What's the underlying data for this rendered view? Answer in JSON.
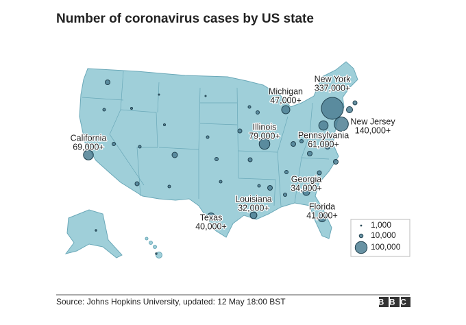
{
  "title": "Number of coronavirus cases by US state",
  "states": [
    {
      "name": "New York",
      "value": 337000,
      "label": "337,000+"
    },
    {
      "name": "New Jersey",
      "value": 140000,
      "label": "140,000+"
    },
    {
      "name": "Michigan",
      "value": 47000,
      "label": "47,000+"
    },
    {
      "name": "Illinois",
      "value": 79000,
      "label": "79,000+"
    },
    {
      "name": "Pennsylvania",
      "value": 61000,
      "label": "61,000+"
    },
    {
      "name": "California",
      "value": 69000,
      "label": "69,000+"
    },
    {
      "name": "Georgia",
      "value": 34000,
      "label": "34,000+"
    },
    {
      "name": "Louisiana",
      "value": 32000,
      "label": "32,000+"
    },
    {
      "name": "Florida",
      "value": 41000,
      "label": "41,000+"
    },
    {
      "name": "Texas",
      "value": 40000,
      "label": "40,000+"
    }
  ],
  "legend": [
    {
      "value": 1000,
      "label": "1,000"
    },
    {
      "value": 10000,
      "label": "10,000"
    },
    {
      "value": 100000,
      "label": "100,000"
    }
  ],
  "source": "Source: Johns Hopkins University, updated: 12 May 18:00 BST",
  "logo": "BBC"
}
